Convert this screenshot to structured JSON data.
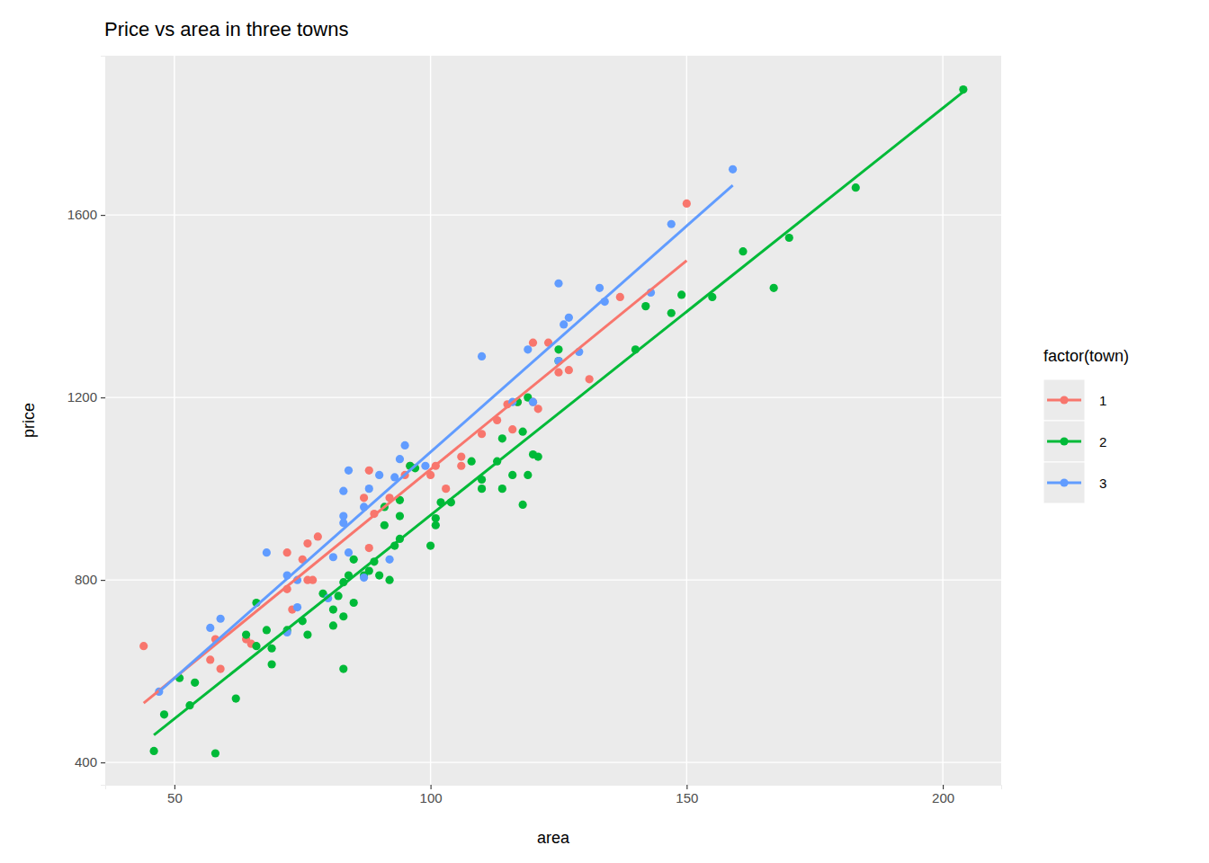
{
  "chart_data": {
    "type": "scatter",
    "title": "Price vs area in three towns",
    "x_label": "area",
    "y_label": "price",
    "xlim": [
      36.5,
      211.4
    ],
    "ylim": [
      351,
      1949
    ],
    "xticks": [
      50,
      100,
      150,
      200
    ],
    "yticks": [
      400,
      800,
      1200,
      1600
    ],
    "grid": true,
    "legend": "right",
    "legend_title": "factor(town)",
    "marker": "circle",
    "series": [
      {
        "name": "1",
        "color": "#F8766D",
        "x": [
          44,
          57,
          58,
          59,
          64,
          65,
          72,
          72,
          73,
          75,
          76,
          76,
          77,
          78,
          87,
          88,
          88,
          89,
          92,
          95,
          96,
          100,
          101,
          103,
          106,
          106,
          110,
          113,
          115,
          116,
          117,
          120,
          121,
          123,
          125,
          127,
          131,
          137,
          150,
          120
        ],
        "values": [
          655,
          625,
          670,
          605,
          670,
          660,
          780,
          860,
          735,
          845,
          880,
          800,
          800,
          895,
          980,
          1040,
          870,
          945,
          980,
          1030,
          1050,
          1030,
          1050,
          1000,
          1050,
          1070,
          1120,
          1150,
          1185,
          1130,
          1190,
          1320,
          1175,
          1320,
          1255,
          1260,
          1240,
          1420,
          1625,
          1190
        ],
        "fit": {
          "x": [
            44,
            150
          ],
          "values": [
            530,
            1500
          ]
        }
      },
      {
        "name": "2",
        "color": "#00BA38",
        "x": [
          46,
          48,
          51,
          53,
          54,
          58,
          62,
          64,
          66,
          66,
          68,
          69,
          69,
          72,
          75,
          76,
          79,
          81,
          81,
          82,
          83,
          83,
          83,
          84,
          85,
          85,
          87,
          88,
          89,
          90,
          91,
          91,
          92,
          93,
          94,
          94,
          94,
          97,
          100,
          101,
          101,
          102,
          104,
          108,
          110,
          110,
          114,
          114,
          116,
          117,
          118,
          118,
          119,
          119,
          120,
          121,
          125,
          125,
          140,
          142,
          147,
          149,
          155,
          161,
          167,
          170,
          183,
          204,
          113,
          96
        ],
        "values": [
          425,
          505,
          585,
          525,
          575,
          420,
          540,
          680,
          750,
          655,
          690,
          615,
          650,
          690,
          710,
          680,
          770,
          700,
          735,
          765,
          605,
          720,
          795,
          810,
          750,
          845,
          810,
          820,
          840,
          810,
          920,
          960,
          800,
          875,
          890,
          940,
          975,
          1045,
          875,
          935,
          920,
          970,
          970,
          1060,
          1000,
          1020,
          1110,
          1000,
          1030,
          1190,
          965,
          1125,
          1030,
          1200,
          1075,
          1070,
          1305,
          1280,
          1305,
          1400,
          1385,
          1425,
          1420,
          1520,
          1440,
          1550,
          1660,
          1875,
          1060,
          1050
        ],
        "fit": {
          "x": [
            46,
            204
          ],
          "values": [
            460,
            1870
          ]
        }
      },
      {
        "name": "3",
        "color": "#619CFF",
        "x": [
          47,
          57,
          59,
          68,
          72,
          72,
          74,
          74,
          80,
          81,
          83,
          83,
          83,
          84,
          84,
          87,
          87,
          88,
          90,
          92,
          93,
          94,
          95,
          99,
          110,
          119,
          120,
          125,
          125,
          126,
          127,
          129,
          133,
          134,
          143,
          147,
          159,
          116
        ],
        "values": [
          555,
          695,
          715,
          860,
          810,
          685,
          800,
          740,
          760,
          850,
          940,
          925,
          995,
          1040,
          860,
          805,
          960,
          1000,
          1030,
          845,
          1025,
          1065,
          1095,
          1050,
          1290,
          1305,
          1190,
          1450,
          1280,
          1360,
          1375,
          1300,
          1440,
          1410,
          1430,
          1580,
          1700,
          1190
        ],
        "fit": {
          "x": [
            47,
            159
          ],
          "values": [
            555,
            1665
          ]
        }
      }
    ]
  }
}
